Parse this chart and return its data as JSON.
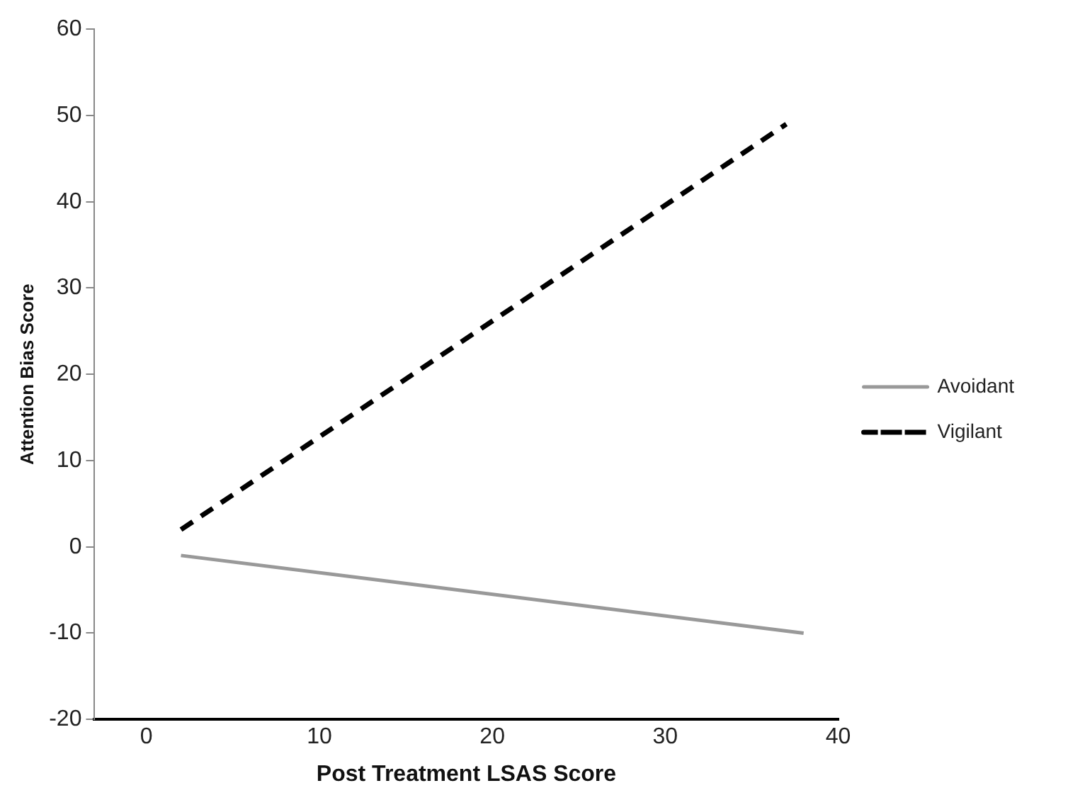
{
  "chart_data": {
    "type": "line",
    "xlabel": "Post Treatment LSAS Score",
    "ylabel": "Attention Bias Score",
    "xlim": [
      -3,
      40
    ],
    "xticks": [
      0,
      10,
      20,
      30,
      40
    ],
    "ylim": [
      -20,
      60
    ],
    "yticks": [
      -20,
      -10,
      0,
      10,
      20,
      30,
      40,
      50,
      60
    ],
    "grid": false,
    "legend": "right",
    "marker": "none",
    "series": [
      {
        "name": "Avoidant",
        "color": "#999999",
        "line_style": "solid",
        "x": [
          2,
          38
        ],
        "values": [
          -1,
          -10
        ]
      },
      {
        "name": "Vigilant",
        "color": "#000000",
        "line_style": "dashed",
        "x": [
          2,
          37
        ],
        "values": [
          2,
          49
        ]
      }
    ]
  }
}
